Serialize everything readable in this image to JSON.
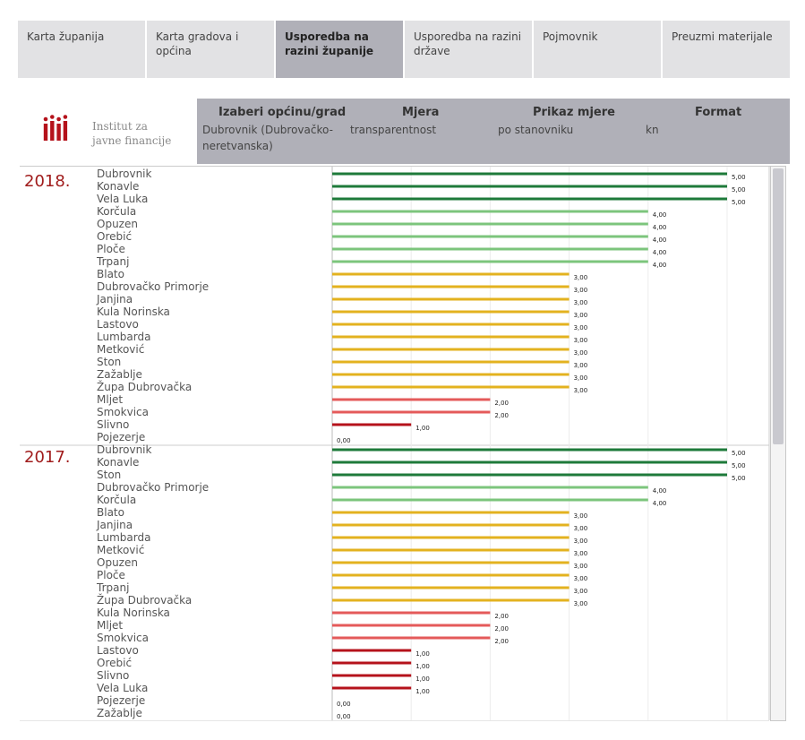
{
  "tabs": [
    {
      "label": "Karta županija",
      "active": false
    },
    {
      "label": "Karta gradova i općina",
      "active": false
    },
    {
      "label": "Usporedba na razini županije",
      "active": true
    },
    {
      "label": "Usporedba na razini države",
      "active": false
    },
    {
      "label": "Pojmovnik",
      "active": false
    },
    {
      "label": "Preuzmi materijale",
      "active": false
    }
  ],
  "logo": {
    "line1": "Institut za",
    "line2": "javne financije",
    "color": "#b5121b"
  },
  "controls": {
    "municipality": {
      "title": "Izaberi općinu/grad",
      "value": "Dubrovnik (Dubrovačko-neretvanska)"
    },
    "measure": {
      "title": "Mjera",
      "value": "transparentnost"
    },
    "display": {
      "title": "Prikaz mjere",
      "value": "po stanovniku"
    },
    "format": {
      "title": "Format",
      "value": "kn"
    }
  },
  "colors": {
    "5": "#1e7a3a",
    "4": "#7cc57c",
    "3": "#e3b21f",
    "2": "#e45a5a",
    "1": "#b5121b",
    "0": "#999999",
    "year": "#a01c1c"
  },
  "chart_data": {
    "type": "bar",
    "orientation": "horizontal",
    "xlim": [
      0,
      5
    ],
    "panels": [
      {
        "year": "2018.",
        "rows": [
          {
            "name": "Dubrovnik",
            "value": 5,
            "label": "5,00"
          },
          {
            "name": "Konavle",
            "value": 5,
            "label": "5,00"
          },
          {
            "name": "Vela Luka",
            "value": 5,
            "label": "5,00"
          },
          {
            "name": "Korčula",
            "value": 4,
            "label": "4,00"
          },
          {
            "name": "Opuzen",
            "value": 4,
            "label": "4,00"
          },
          {
            "name": "Orebić",
            "value": 4,
            "label": "4,00"
          },
          {
            "name": "Ploče",
            "value": 4,
            "label": "4,00"
          },
          {
            "name": "Trpanj",
            "value": 4,
            "label": "4,00"
          },
          {
            "name": "Blato",
            "value": 3,
            "label": "3,00"
          },
          {
            "name": "Dubrovačko Primorje",
            "value": 3,
            "label": "3,00"
          },
          {
            "name": "Janjina",
            "value": 3,
            "label": "3,00"
          },
          {
            "name": "Kula Norinska",
            "value": 3,
            "label": "3,00"
          },
          {
            "name": "Lastovo",
            "value": 3,
            "label": "3,00"
          },
          {
            "name": "Lumbarda",
            "value": 3,
            "label": "3,00"
          },
          {
            "name": "Metković",
            "value": 3,
            "label": "3,00"
          },
          {
            "name": "Ston",
            "value": 3,
            "label": "3,00"
          },
          {
            "name": "Zažablje",
            "value": 3,
            "label": "3,00"
          },
          {
            "name": "Župa Dubrovačka",
            "value": 3,
            "label": "3,00"
          },
          {
            "name": "Mljet",
            "value": 2,
            "label": "2,00"
          },
          {
            "name": "Smokvica",
            "value": 2,
            "label": "2,00"
          },
          {
            "name": "Slivno",
            "value": 1,
            "label": "1,00"
          },
          {
            "name": "Pojezerje",
            "value": 0,
            "label": "0,00"
          }
        ]
      },
      {
        "year": "2017.",
        "rows": [
          {
            "name": "Dubrovnik",
            "value": 5,
            "label": "5,00"
          },
          {
            "name": "Konavle",
            "value": 5,
            "label": "5,00"
          },
          {
            "name": "Ston",
            "value": 5,
            "label": "5,00"
          },
          {
            "name": "Dubrovačko Primorje",
            "value": 4,
            "label": "4,00"
          },
          {
            "name": "Korčula",
            "value": 4,
            "label": "4,00"
          },
          {
            "name": "Blato",
            "value": 3,
            "label": "3,00"
          },
          {
            "name": "Janjina",
            "value": 3,
            "label": "3,00"
          },
          {
            "name": "Lumbarda",
            "value": 3,
            "label": "3,00"
          },
          {
            "name": "Metković",
            "value": 3,
            "label": "3,00"
          },
          {
            "name": "Opuzen",
            "value": 3,
            "label": "3,00"
          },
          {
            "name": "Ploče",
            "value": 3,
            "label": "3,00"
          },
          {
            "name": "Trpanj",
            "value": 3,
            "label": "3,00"
          },
          {
            "name": "Župa Dubrovačka",
            "value": 3,
            "label": "3,00"
          },
          {
            "name": "Kula Norinska",
            "value": 2,
            "label": "2,00"
          },
          {
            "name": "Mljet",
            "value": 2,
            "label": "2,00"
          },
          {
            "name": "Smokvica",
            "value": 2,
            "label": "2,00"
          },
          {
            "name": "Lastovo",
            "value": 1,
            "label": "1,00"
          },
          {
            "name": "Orebić",
            "value": 1,
            "label": "1,00"
          },
          {
            "name": "Slivno",
            "value": 1,
            "label": "1,00"
          },
          {
            "name": "Vela Luka",
            "value": 1,
            "label": "1,00"
          },
          {
            "name": "Pojezerje",
            "value": 0,
            "label": "0,00"
          },
          {
            "name": "Zažablje",
            "value": 0,
            "label": "0,00"
          }
        ]
      }
    ]
  }
}
